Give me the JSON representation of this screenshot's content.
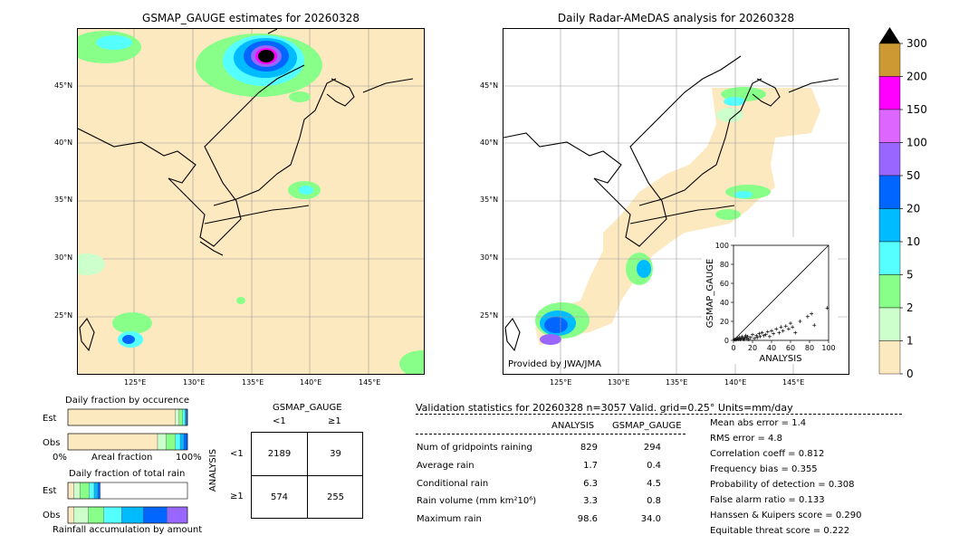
{
  "left_map": {
    "title": "GSMAP_GAUGE estimates for 20260328",
    "lat_labels": [
      "45°N",
      "40°N",
      "35°N",
      "30°N",
      "25°N"
    ],
    "lon_labels": [
      "125°E",
      "130°E",
      "135°E",
      "140°E",
      "145°E"
    ]
  },
  "right_map": {
    "title": "Daily Radar-AMeDAS analysis for 20260328",
    "lat_labels": [
      "45°N",
      "40°N",
      "35°N",
      "30°N",
      "25°N"
    ],
    "lon_labels": [
      "125°E",
      "130°E",
      "135°E",
      "140°E",
      "145°E"
    ],
    "credit": "Provided by JWA/JMA"
  },
  "colorbar": {
    "labels": [
      "300",
      "200",
      "150",
      "100",
      "50",
      "20",
      "10",
      "5",
      "2",
      "1",
      "0"
    ],
    "colors": [
      "#cc9933",
      "#ff00ff",
      "#dd66ff",
      "#9966ff",
      "#0066ff",
      "#00bbff",
      "#55ffff",
      "#88ff88",
      "#ccffcc",
      "#fde9bf"
    ]
  },
  "chart_data": [
    {
      "type": "scatter",
      "xlabel": "ANALYSIS",
      "ylabel": "GSMAP_GAUGE",
      "xlim": [
        0,
        100
      ],
      "ylim": [
        0,
        100
      ],
      "xticks": [
        "0",
        "20",
        "40",
        "60",
        "80",
        "100"
      ],
      "yticks": [
        "0",
        "20",
        "40",
        "60",
        "80",
        "100"
      ],
      "points": [
        [
          1,
          1
        ],
        [
          2,
          0.5
        ],
        [
          3,
          1
        ],
        [
          4,
          2
        ],
        [
          5,
          1
        ],
        [
          6,
          3
        ],
        [
          7,
          1
        ],
        [
          8,
          2
        ],
        [
          9,
          4
        ],
        [
          10,
          2
        ],
        [
          11,
          1
        ],
        [
          12,
          3
        ],
        [
          13,
          5
        ],
        [
          14,
          2
        ],
        [
          15,
          4
        ],
        [
          16,
          1
        ],
        [
          18,
          3
        ],
        [
          20,
          6
        ],
        [
          22,
          2
        ],
        [
          24,
          5
        ],
        [
          25,
          3
        ],
        [
          27,
          7
        ],
        [
          28,
          4
        ],
        [
          30,
          8
        ],
        [
          32,
          5
        ],
        [
          34,
          6
        ],
        [
          36,
          9
        ],
        [
          38,
          4
        ],
        [
          40,
          10
        ],
        [
          42,
          7
        ],
        [
          45,
          12
        ],
        [
          48,
          8
        ],
        [
          50,
          14
        ],
        [
          52,
          10
        ],
        [
          55,
          15
        ],
        [
          58,
          12
        ],
        [
          60,
          18
        ],
        [
          62,
          14
        ],
        [
          65,
          8
        ],
        [
          70,
          20
        ],
        [
          78,
          25
        ],
        [
          82,
          28
        ],
        [
          85,
          16
        ],
        [
          98.6,
          34
        ]
      ]
    },
    {
      "type": "bar",
      "title": "Daily fraction by occurence",
      "categories": [
        "Est",
        "Obs"
      ],
      "xlabel": "Areal fraction",
      "x_range_labels": [
        "0%",
        "100%"
      ],
      "series": [
        {
          "values": [
            0.9,
            0.75
          ]
        },
        {
          "values": [
            0.03,
            0.07
          ]
        },
        {
          "values": [
            0.03,
            0.08
          ]
        },
        {
          "values": [
            0.02,
            0.04
          ]
        },
        {
          "values": [
            0.01,
            0.03
          ]
        },
        {
          "values": [
            0.01,
            0.03
          ]
        }
      ],
      "series_colors": [
        "#fde9bf",
        "#ccffcc",
        "#88ff88",
        "#55ffff",
        "#00bbff",
        "#0066ff"
      ]
    },
    {
      "type": "bar",
      "title": "Daily fraction of total rain",
      "categories": [
        "Est",
        "Obs"
      ],
      "xlabel": "Rainfall accumulation by amount",
      "series": [
        {
          "values": [
            0.05,
            0.05
          ]
        },
        {
          "values": [
            0.05,
            0.12
          ]
        },
        {
          "values": [
            0.08,
            0.13
          ]
        },
        {
          "values": [
            0.04,
            0.15
          ]
        },
        {
          "values": [
            0.03,
            0.18
          ]
        },
        {
          "values": [
            0.02,
            0.2
          ]
        },
        {
          "values": [
            0.0,
            0.17
          ]
        }
      ],
      "series_colors": [
        "#fde9bf",
        "#ccffcc",
        "#88ff88",
        "#55ffff",
        "#00bbff",
        "#0066ff",
        "#9966ff"
      ]
    }
  ],
  "contingency": {
    "title": "GSMAP_GAUGE",
    "col_labels": [
      "<1",
      "≥1"
    ],
    "row_axis": "ANALYSIS",
    "row_labels": [
      "<1",
      "≥1"
    ],
    "cells": [
      [
        "2189",
        "39"
      ],
      [
        "574",
        "255"
      ]
    ]
  },
  "validation": {
    "header": "Validation statistics for 20260328  n=3057 Valid. grid=0.25° Units=mm/day",
    "col_analysis": "ANALYSIS",
    "col_gsmap": "GSMAP_GAUGE",
    "rows": [
      {
        "label": "Num of gridpoints raining",
        "analysis": "829",
        "gsmap": "294"
      },
      {
        "label": "Average rain",
        "analysis": "1.7",
        "gsmap": "0.4"
      },
      {
        "label": "Conditional rain",
        "analysis": "6.3",
        "gsmap": "4.5"
      },
      {
        "label": "Rain volume (mm km²10⁶)",
        "analysis": "3.3",
        "gsmap": "0.8"
      },
      {
        "label": "Maximum rain",
        "analysis": "98.6",
        "gsmap": "34.0"
      }
    ],
    "scores": [
      "Mean abs error =    1.4",
      "RMS error =    4.8",
      "Correlation coeff =  0.812",
      "Frequency bias =  0.355",
      "Probability of detection =  0.308",
      "False alarm ratio =  0.133",
      "Hanssen & Kuipers score =  0.290",
      "Equitable threat score =  0.222"
    ]
  }
}
